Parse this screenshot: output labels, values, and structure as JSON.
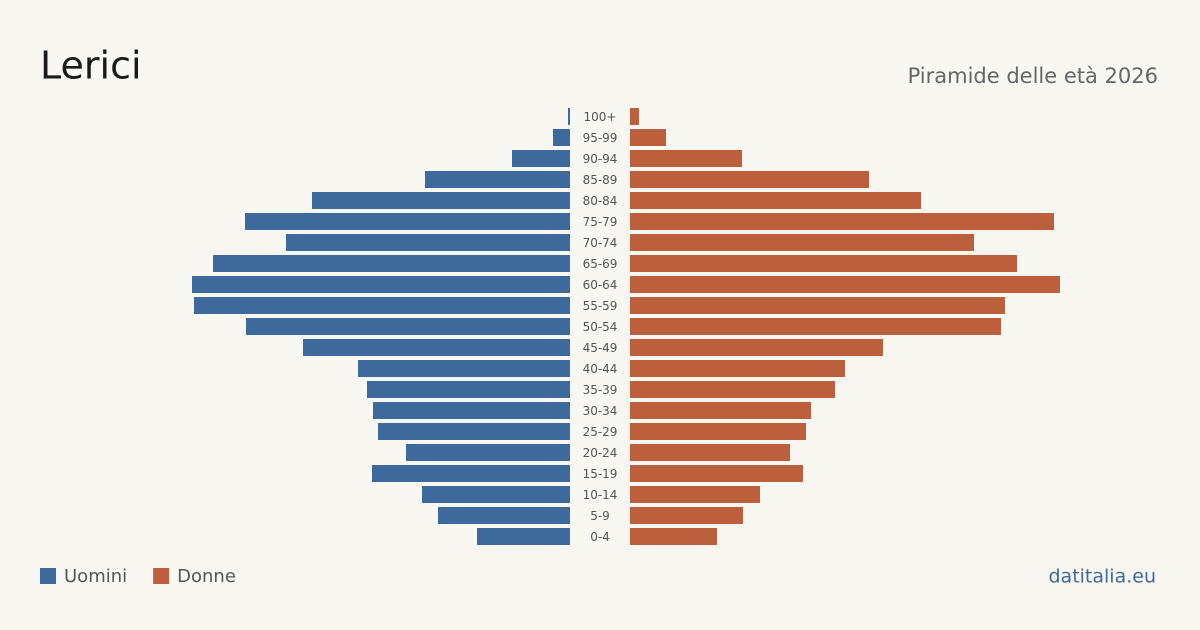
{
  "chart_data": {
    "type": "pyramid",
    "title": "Lerici",
    "subtitle": "Piramide delle età 2026",
    "source": "datitalia.eu",
    "categories": [
      "100+",
      "95-99",
      "90-94",
      "85-89",
      "80-84",
      "75-79",
      "70-74",
      "65-69",
      "60-64",
      "55-59",
      "50-54",
      "45-49",
      "40-44",
      "35-39",
      "30-34",
      "25-29",
      "20-24",
      "15-19",
      "10-14",
      "5-9",
      "0-4"
    ],
    "series": [
      {
        "name": "Uomini",
        "color": "#3d6a9b",
        "values": [
          2,
          17,
          58,
          145,
          258,
          325,
          284,
          357,
          378,
          376,
          324,
          267,
          212,
          203,
          197,
          192,
          164,
          198,
          148,
          132,
          93
        ]
      },
      {
        "name": "Donne",
        "color": "#bb5f3d",
        "values": [
          9,
          36,
          112,
          239,
          291,
          424,
          344,
          387,
          430,
          375,
          371,
          253,
          215,
          205,
          181,
          176,
          160,
          173,
          130,
          113,
          87
        ]
      }
    ]
  }
}
